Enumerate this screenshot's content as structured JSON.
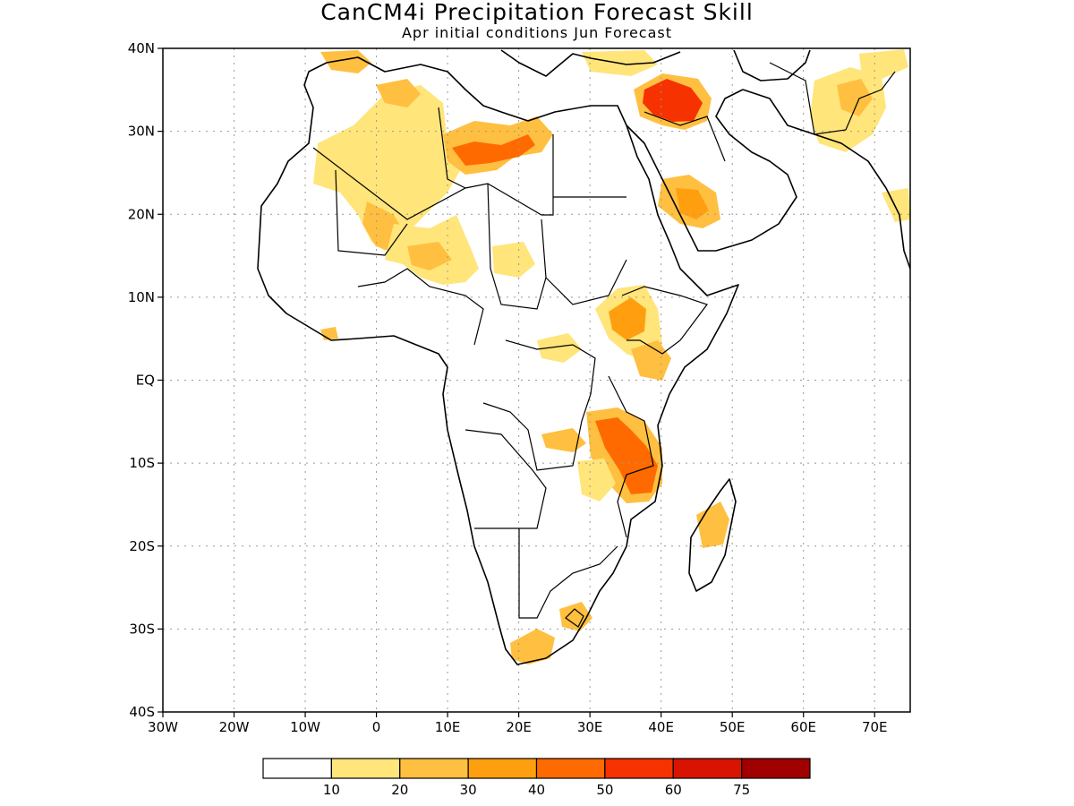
{
  "title": "CanCM4i Precipitation Forecast Skill",
  "subtitle": "Apr initial conditions  Jun Forecast",
  "map": {
    "extent": {
      "lon": [
        -30,
        75
      ],
      "lat": [
        -40,
        40
      ]
    },
    "grid": true,
    "lat_ticks": [
      {
        "lat": 40,
        "label": "40N"
      },
      {
        "lat": 30,
        "label": "30N"
      },
      {
        "lat": 20,
        "label": "20N"
      },
      {
        "lat": 10,
        "label": "10N"
      },
      {
        "lat": 0,
        "label": "EQ"
      },
      {
        "lat": -10,
        "label": "10S"
      },
      {
        "lat": -20,
        "label": "20S"
      },
      {
        "lat": -30,
        "label": "30S"
      },
      {
        "lat": -40,
        "label": "40S"
      }
    ],
    "lon_ticks": [
      {
        "lon": -30,
        "label": "30W"
      },
      {
        "lon": -20,
        "label": "20W"
      },
      {
        "lon": -10,
        "label": "10W"
      },
      {
        "lon": 0,
        "label": "0"
      },
      {
        "lon": 10,
        "label": "10E"
      },
      {
        "lon": 20,
        "label": "20E"
      },
      {
        "lon": 30,
        "label": "30E"
      },
      {
        "lon": 40,
        "label": "40E"
      },
      {
        "lon": 50,
        "label": "50E"
      },
      {
        "lon": 60,
        "label": "60E"
      },
      {
        "lon": 70,
        "label": "70E"
      }
    ]
  },
  "legend": {
    "labels": [
      "10",
      "20",
      "30",
      "40",
      "50",
      "60",
      "75"
    ],
    "colors": [
      "#ffffff",
      "#ffe57a",
      "#ffbf40",
      "#ff9f10",
      "#ff6a00",
      "#f53200",
      "#d81400",
      "#a00000"
    ]
  }
}
